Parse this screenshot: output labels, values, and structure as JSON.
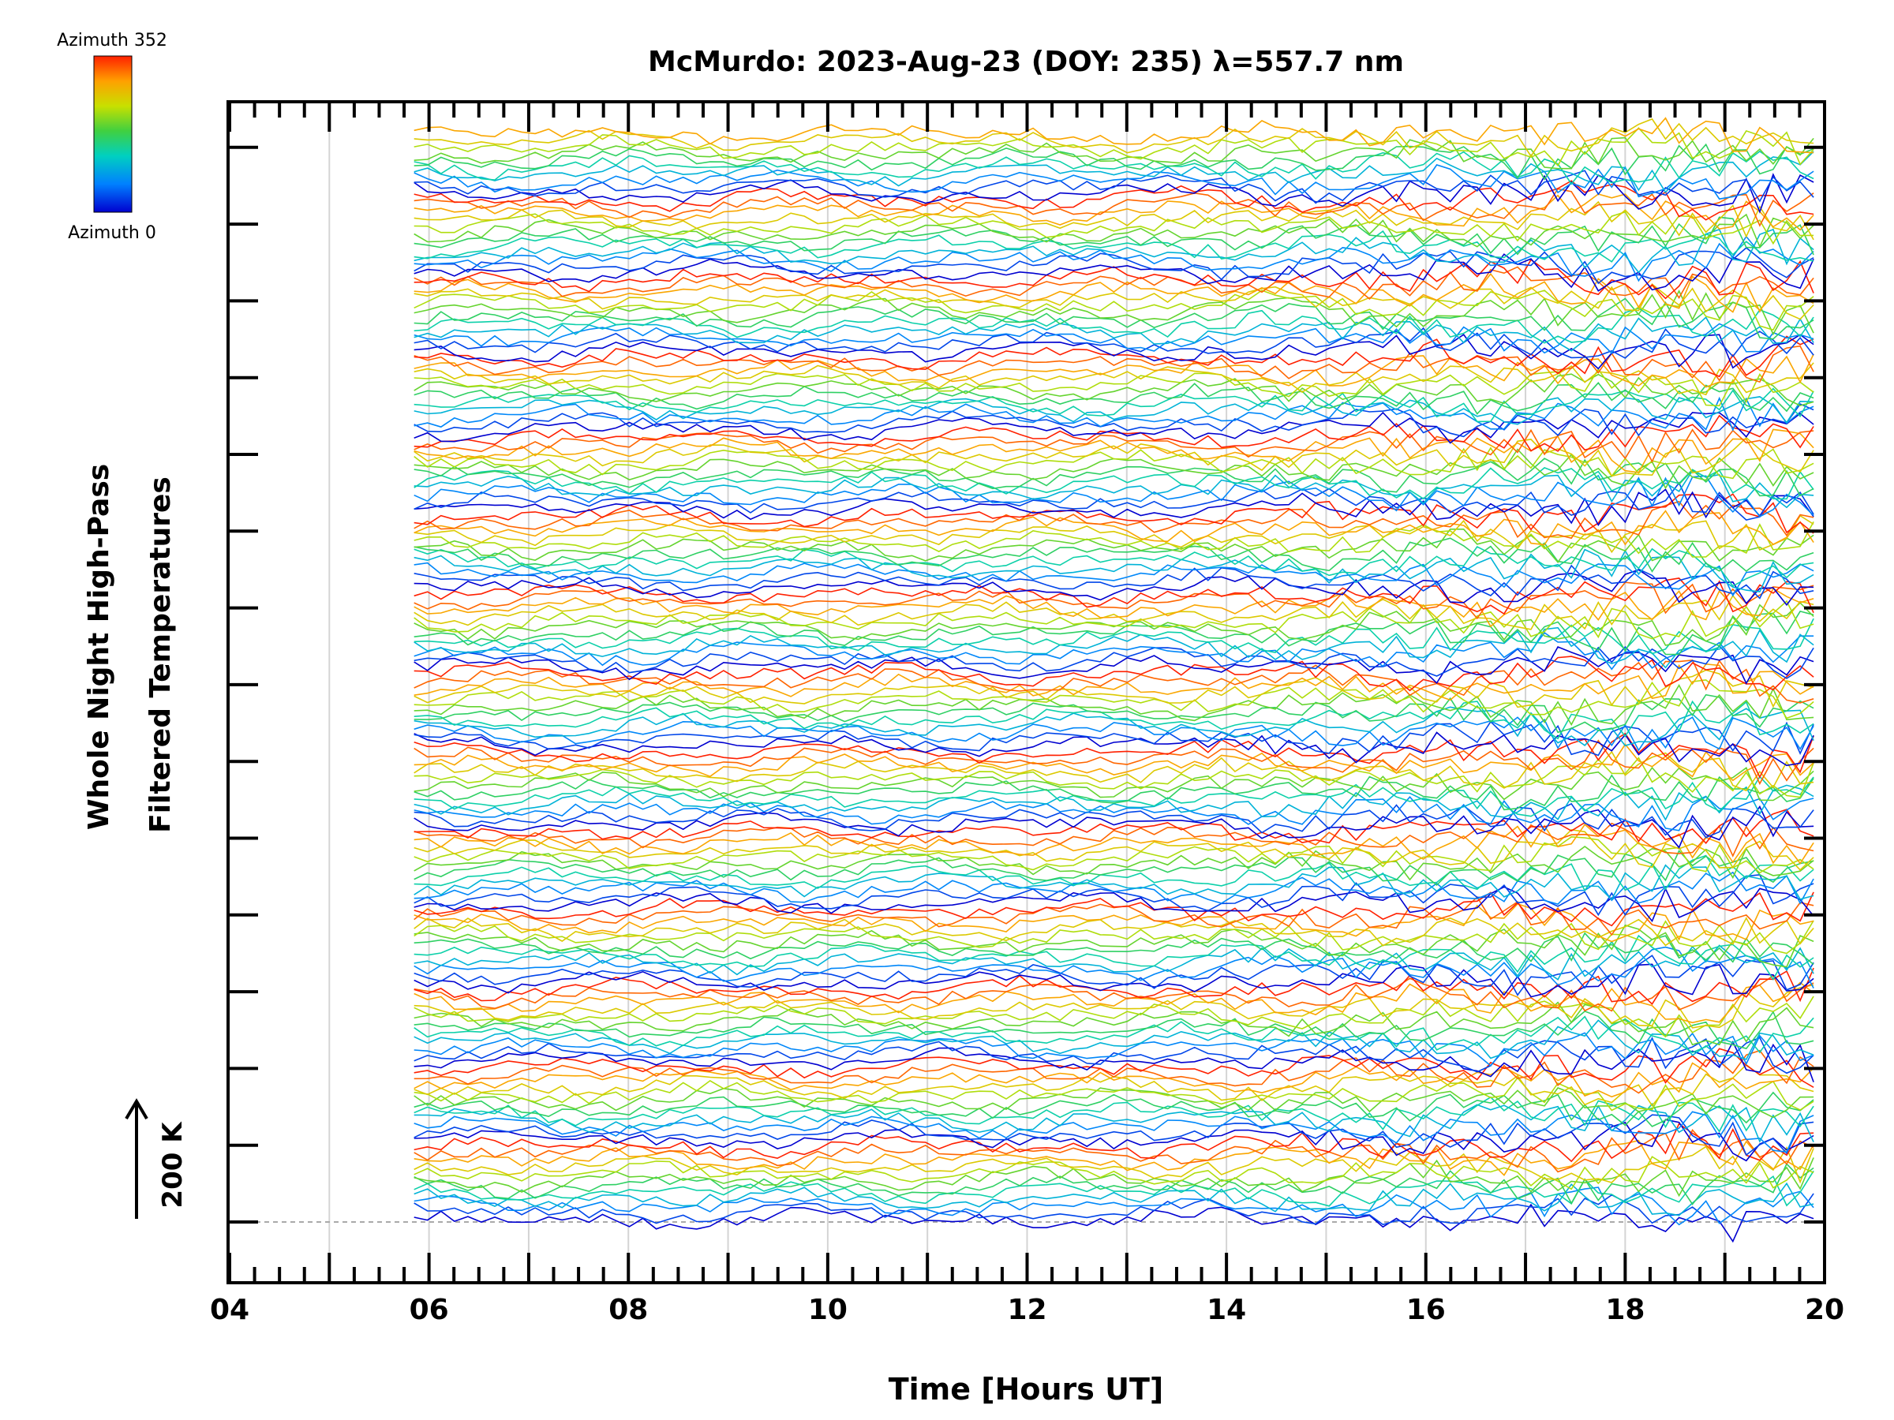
{
  "chart_data": {
    "type": "line",
    "title": "McMurdo: 2023-Aug-23 (DOY: 235) λ=557.7 nm",
    "xlabel": "Time [Hours UT]",
    "ylabel_line1": "Whole Night High-Pass",
    "ylabel_line2": "Filtered Temperatures",
    "x_range": [
      4,
      20
    ],
    "x_ticks": [
      "04",
      "06",
      "08",
      "10",
      "12",
      "14",
      "16",
      "18",
      "20"
    ],
    "x_tick_values": [
      4,
      6,
      8,
      10,
      12,
      14,
      16,
      18,
      20
    ],
    "vertical_gridlines": [
      5,
      6,
      7,
      8,
      9,
      10,
      11,
      12,
      13,
      14,
      15,
      16,
      17,
      18,
      19
    ],
    "data_start_hour": 5.85,
    "data_end_hour": 20.0,
    "scale_arrow_label": "200 K",
    "colorbar": {
      "top_label": "Azimuth 352",
      "bottom_label": "Azimuth 0",
      "colors": [
        "#0000d0",
        "#0080ff",
        "#00d0c0",
        "#40d040",
        "#c8e000",
        "#ffa000",
        "#ff2000"
      ]
    },
    "series_count": 166,
    "stack_offset_note": "Each trace is vertically offset; 14 azimuth sweeps (0 to 352 deg) stacked from bottom to top",
    "amplitude_note": "Fluctuations grow larger after ~13 UT"
  }
}
